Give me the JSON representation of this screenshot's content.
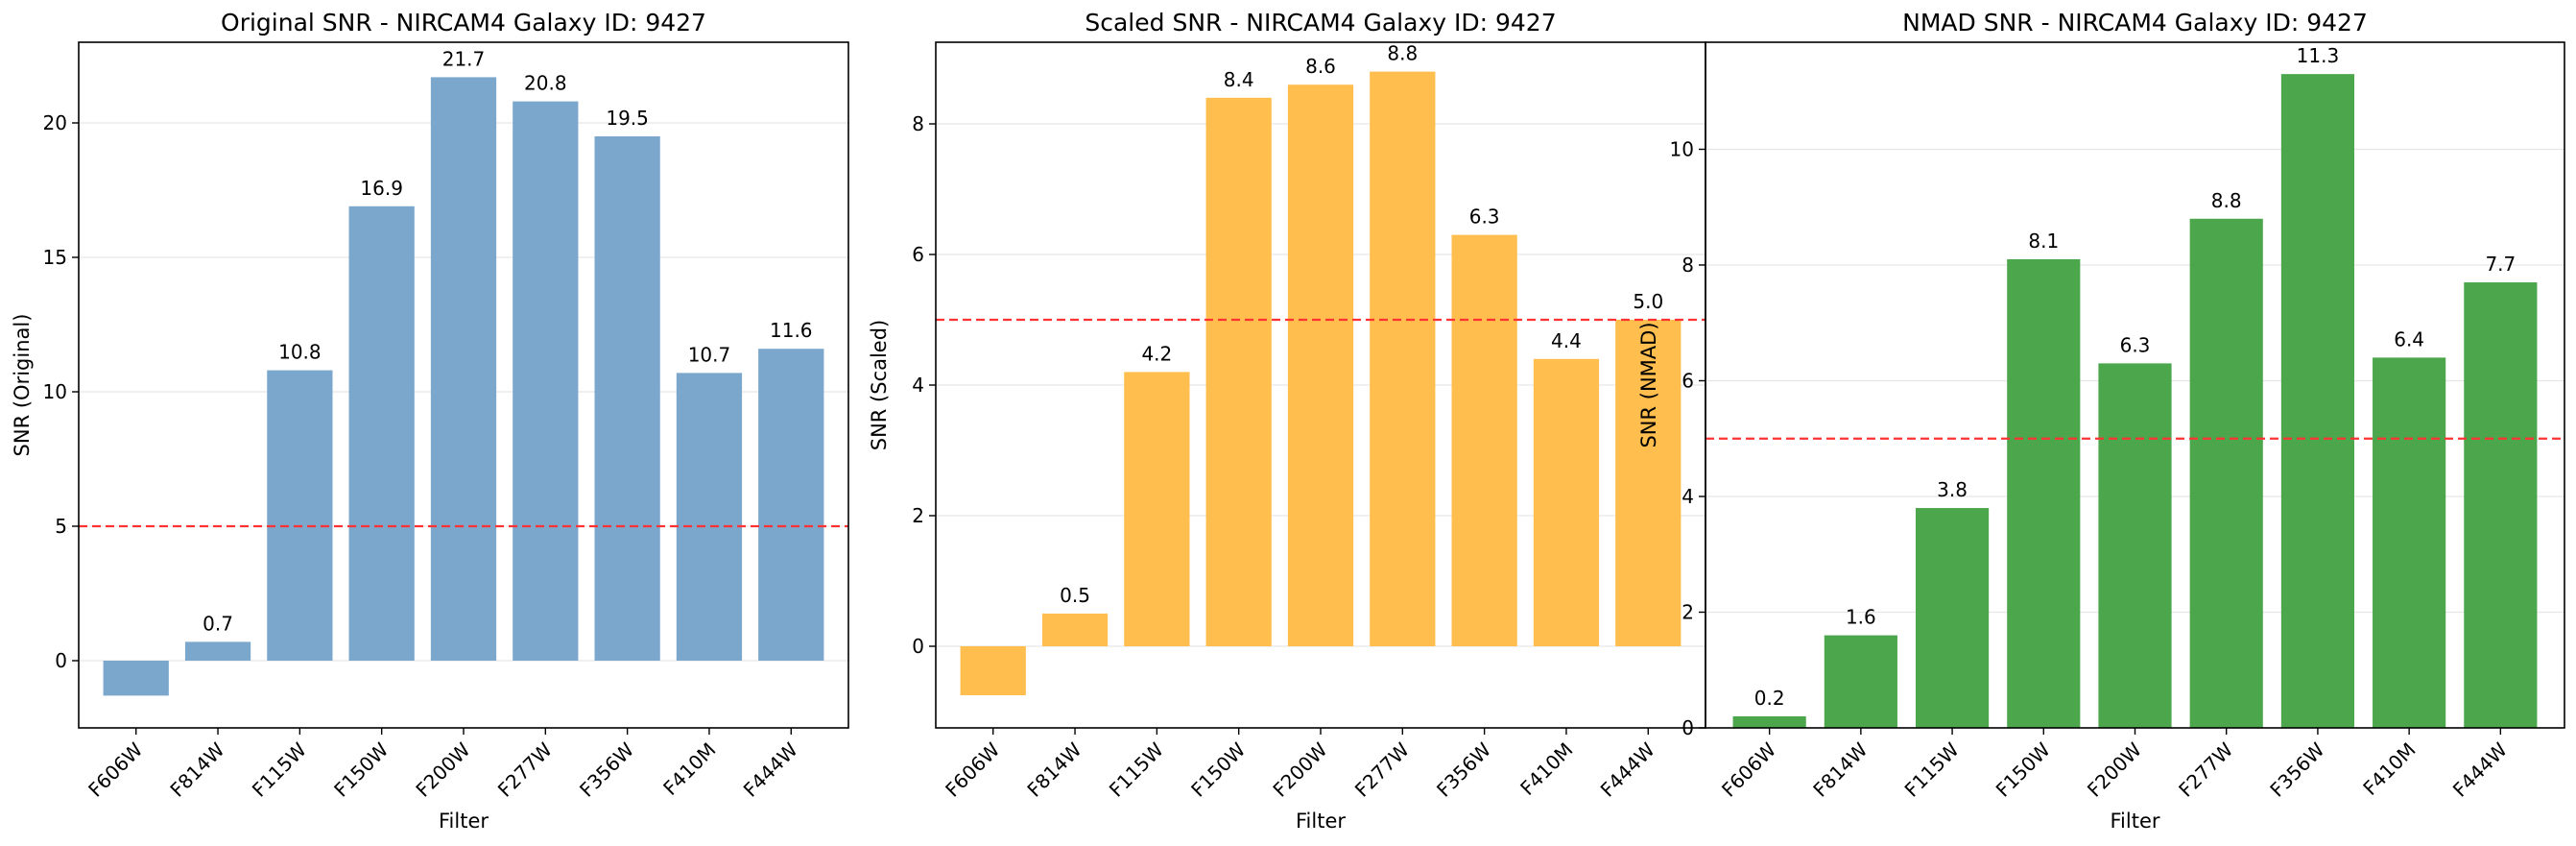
{
  "chart_data": [
    {
      "type": "bar",
      "title": "Original SNR - NIRCAM4 Galaxy ID: 9427",
      "xlabel": "Filter",
      "ylabel": "SNR (Original)",
      "categories": [
        "F606W",
        "F814W",
        "F115W",
        "F150W",
        "F200W",
        "F277W",
        "F356W",
        "F410M",
        "F444W"
      ],
      "values": [
        -1.3,
        0.7,
        10.8,
        16.9,
        21.7,
        20.8,
        19.5,
        10.7,
        11.6
      ],
      "value_labels": [
        "",
        "0.7",
        "10.8",
        "16.9",
        "21.7",
        "20.8",
        "19.5",
        "10.7",
        "11.6"
      ],
      "ylim": [
        -2.5,
        23
      ],
      "yticks": [
        0,
        5,
        10,
        15,
        20
      ],
      "threshold": 5,
      "grid": "y",
      "bar_color": "#7ba7cc",
      "threshold_color": "#ff3333"
    },
    {
      "type": "bar",
      "title": "Scaled SNR - NIRCAM4 Galaxy ID: 9427",
      "xlabel": "Filter",
      "ylabel": "SNR (Scaled)",
      "categories": [
        "F606W",
        "F814W",
        "F115W",
        "F150W",
        "F200W",
        "F277W",
        "F356W",
        "F410M",
        "F444W"
      ],
      "values": [
        -0.75,
        0.5,
        4.2,
        8.4,
        8.6,
        8.8,
        6.3,
        4.4,
        5.0
      ],
      "value_labels": [
        "",
        "0.5",
        "4.2",
        "8.4",
        "8.6",
        "8.8",
        "6.3",
        "4.4",
        "5.0"
      ],
      "ylim": [
        -1.25,
        9.25
      ],
      "yticks": [
        0,
        2,
        4,
        6,
        8
      ],
      "threshold": 5,
      "grid": "y",
      "bar_color": "#ffbe4d",
      "threshold_color": "#ff3333"
    },
    {
      "type": "bar",
      "title": "NMAD SNR - NIRCAM4 Galaxy ID: 9427",
      "xlabel": "Filter",
      "ylabel": "SNR (NMAD)",
      "categories": [
        "F606W",
        "F814W",
        "F115W",
        "F150W",
        "F200W",
        "F277W",
        "F356W",
        "F410M",
        "F444W"
      ],
      "values": [
        0.2,
        1.6,
        3.8,
        8.1,
        6.3,
        8.8,
        11.3,
        6.4,
        7.7
      ],
      "value_labels": [
        "0.2",
        "1.6",
        "3.8",
        "8.1",
        "6.3",
        "8.8",
        "11.3",
        "6.4",
        "7.7"
      ],
      "ylim": [
        0,
        11.85
      ],
      "yticks": [
        0,
        2,
        4,
        6,
        8,
        10
      ],
      "threshold": 5,
      "grid": "y",
      "bar_color": "#4ca64c",
      "threshold_color": "#ff3333"
    }
  ]
}
